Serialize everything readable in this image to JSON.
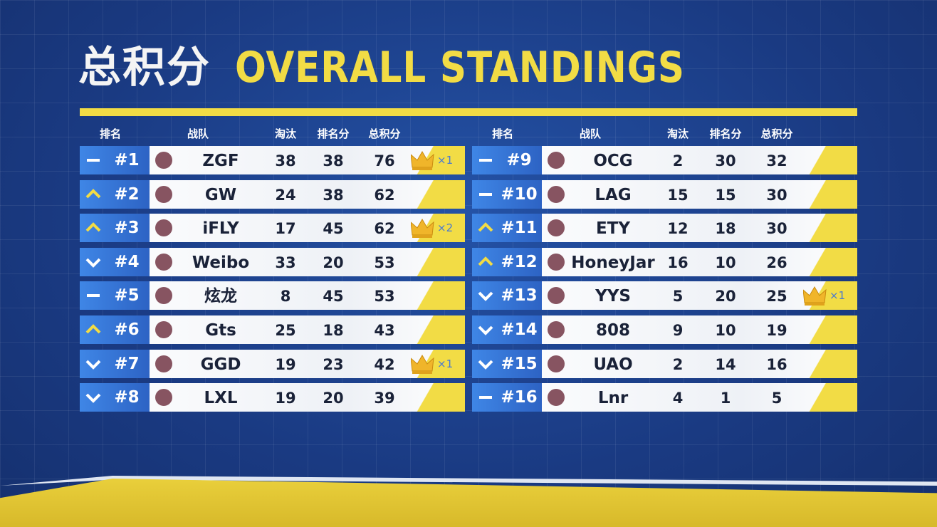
{
  "title": {
    "cn": "总积分",
    "en": "OVERALL STANDINGS"
  },
  "headers": [
    "排名",
    "战队",
    "淘汰",
    "排名分",
    "总积分"
  ],
  "tables": [
    {
      "rows": [
        {
          "rank": "#1",
          "trend": "same",
          "team": "ZGF",
          "kills": 38,
          "placement": 38,
          "total": 76,
          "wins": "×1"
        },
        {
          "rank": "#2",
          "trend": "up",
          "team": "GW",
          "kills": 24,
          "placement": 38,
          "total": 62
        },
        {
          "rank": "#3",
          "trend": "up",
          "team": "iFLY",
          "kills": 17,
          "placement": 45,
          "total": 62,
          "wins": "×2"
        },
        {
          "rank": "#4",
          "trend": "down",
          "team": "Weibo",
          "kills": 33,
          "placement": 20,
          "total": 53
        },
        {
          "rank": "#5",
          "trend": "same",
          "team": "炫龙",
          "kills": 8,
          "placement": 45,
          "total": 53
        },
        {
          "rank": "#6",
          "trend": "up",
          "team": "Gts",
          "kills": 25,
          "placement": 18,
          "total": 43
        },
        {
          "rank": "#7",
          "trend": "down",
          "team": "GGD",
          "kills": 19,
          "placement": 23,
          "total": 42,
          "wins": "×1"
        },
        {
          "rank": "#8",
          "trend": "down",
          "team": "LXL",
          "kills": 19,
          "placement": 20,
          "total": 39
        }
      ]
    },
    {
      "rows": [
        {
          "rank": "#9",
          "trend": "same",
          "team": "OCG",
          "kills": 2,
          "placement": 30,
          "total": 32
        },
        {
          "rank": "#10",
          "trend": "same",
          "team": "LAG",
          "kills": 15,
          "placement": 15,
          "total": 30
        },
        {
          "rank": "#11",
          "trend": "up",
          "team": "ETY",
          "kills": 12,
          "placement": 18,
          "total": 30
        },
        {
          "rank": "#12",
          "trend": "up",
          "team": "HoneyJar",
          "kills": 16,
          "placement": 10,
          "total": 26
        },
        {
          "rank": "#13",
          "trend": "down",
          "team": "YYS",
          "kills": 5,
          "placement": 20,
          "total": 25,
          "wins": "×1"
        },
        {
          "rank": "#14",
          "trend": "down",
          "team": "808",
          "kills": 9,
          "placement": 10,
          "total": 19
        },
        {
          "rank": "#15",
          "trend": "down",
          "team": "UAO",
          "kills": 2,
          "placement": 14,
          "total": 16
        },
        {
          "rank": "#16",
          "trend": "same",
          "team": "Lnr",
          "kills": 4,
          "placement": 1,
          "total": 5
        }
      ]
    }
  ]
}
